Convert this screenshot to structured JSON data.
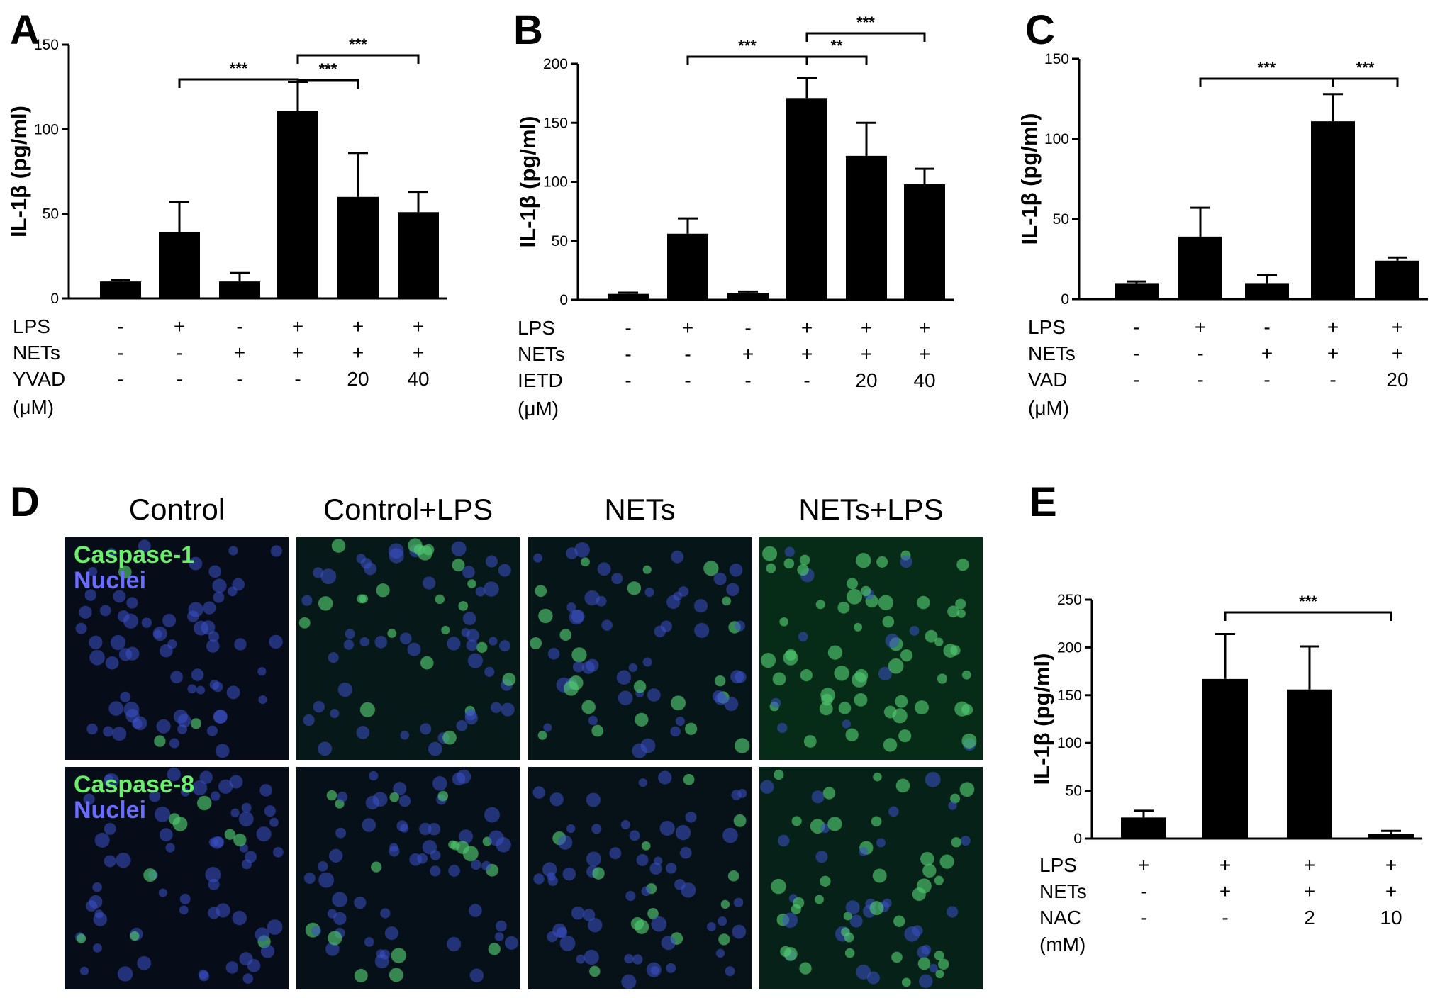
{
  "colors": {
    "bar": "#000000",
    "caspase_stain": "#6cf06c",
    "nuclei_stain": "#6a6cff",
    "micrograph_bg": "#0a1220"
  },
  "chart_data": [
    {
      "panel": "A",
      "type": "bar",
      "ylabel": "IL-1β (pg/ml)",
      "ylim": [
        0,
        150
      ],
      "yticks": [
        0,
        50,
        100,
        150
      ],
      "values": [
        10,
        39,
        10,
        111,
        60,
        51
      ],
      "errors": [
        1,
        18,
        5,
        17,
        26,
        12
      ],
      "conditions": [
        {
          "label": "LPS",
          "values": [
            "-",
            "+",
            "-",
            "+",
            "+",
            "+"
          ]
        },
        {
          "label": "NETs",
          "values": [
            "-",
            "-",
            "+",
            "+",
            "+",
            "+"
          ]
        },
        {
          "label": "YVAD",
          "values": [
            "-",
            "-",
            "-",
            "-",
            "20",
            "40"
          ]
        }
      ],
      "unit_label": "(μM)",
      "significance": [
        {
          "from": 1,
          "to": 3,
          "label": "***"
        },
        {
          "from": 3,
          "to": 4,
          "label": "***"
        },
        {
          "from": 3,
          "to": 5,
          "label": "***"
        }
      ]
    },
    {
      "panel": "B",
      "type": "bar",
      "ylabel": "IL-1β (pg/ml)",
      "ylim": [
        0,
        200
      ],
      "yticks": [
        0,
        50,
        100,
        150,
        200
      ],
      "values": [
        5,
        56,
        6,
        171,
        122,
        98
      ],
      "errors": [
        1,
        13,
        1,
        17,
        28,
        13
      ],
      "conditions": [
        {
          "label": "LPS",
          "values": [
            "-",
            "+",
            "-",
            "+",
            "+",
            "+"
          ]
        },
        {
          "label": "NETs",
          "values": [
            "-",
            "-",
            "+",
            "+",
            "+",
            "+"
          ]
        },
        {
          "label": "IETD",
          "values": [
            "-",
            "-",
            "-",
            "-",
            "20",
            "40"
          ]
        }
      ],
      "unit_label": "(μM)",
      "significance": [
        {
          "from": 1,
          "to": 3,
          "label": "***"
        },
        {
          "from": 3,
          "to": 4,
          "label": "**"
        },
        {
          "from": 3,
          "to": 5,
          "label": "***"
        }
      ]
    },
    {
      "panel": "C",
      "type": "bar",
      "ylabel": "IL-1β (pg/ml)",
      "ylim": [
        0,
        150
      ],
      "yticks": [
        0,
        50,
        100,
        150
      ],
      "values": [
        10,
        39,
        10,
        111,
        24
      ],
      "errors": [
        1,
        18,
        5,
        17,
        2
      ],
      "conditions": [
        {
          "label": "LPS",
          "values": [
            "-",
            "+",
            "-",
            "+",
            "+"
          ]
        },
        {
          "label": "NETs",
          "values": [
            "-",
            "-",
            "+",
            "+",
            "+"
          ]
        },
        {
          "label": "VAD",
          "values": [
            "-",
            "-",
            "-",
            "-",
            "20"
          ]
        }
      ],
      "unit_label": "(μM)",
      "significance": [
        {
          "from": 1,
          "to": 3,
          "label": "***"
        },
        {
          "from": 3,
          "to": 4,
          "label": "***"
        }
      ]
    },
    {
      "panel": "E",
      "type": "bar",
      "ylabel": "IL-1β (pg/ml)",
      "ylim": [
        0,
        250
      ],
      "yticks": [
        0,
        50,
        100,
        150,
        200,
        250
      ],
      "values": [
        22,
        167,
        156,
        5
      ],
      "errors": [
        7,
        47,
        45,
        3
      ],
      "conditions": [
        {
          "label": "LPS",
          "values": [
            "+",
            "+",
            "+",
            "+"
          ]
        },
        {
          "label": "NETs",
          "values": [
            "-",
            "+",
            "+",
            "+"
          ]
        },
        {
          "label": "NAC",
          "values": [
            "-",
            "-",
            "2",
            "10"
          ]
        }
      ],
      "unit_label": "(mM)",
      "significance": [
        {
          "from": 1,
          "to": 3,
          "label": "***"
        }
      ]
    }
  ],
  "micrographs": {
    "panel": "D",
    "columns": [
      "Control",
      "Control+LPS",
      "NETs",
      "NETs+LPS"
    ],
    "rows": [
      {
        "stain": "Caspase-1",
        "counterstain": "Nuclei",
        "green_level": [
          0.05,
          0.35,
          0.3,
          0.85
        ]
      },
      {
        "stain": "Caspase-8",
        "counterstain": "Nuclei",
        "green_level": [
          0.05,
          0.15,
          0.2,
          0.6
        ]
      }
    ]
  }
}
